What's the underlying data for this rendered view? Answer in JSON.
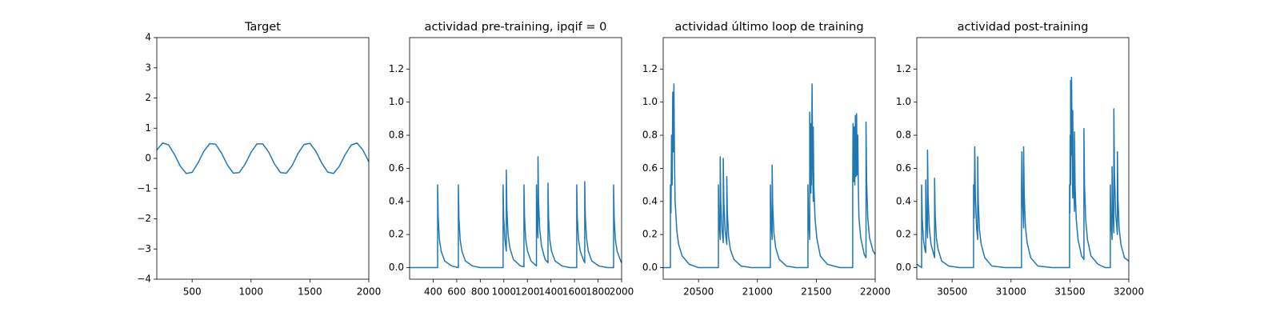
{
  "chart_data": [
    {
      "type": "line",
      "title": "Target",
      "x": [
        200,
        250,
        300,
        350,
        400,
        450,
        500,
        550,
        600,
        650,
        700,
        750,
        800,
        850,
        900,
        950,
        1000,
        1050,
        1100,
        1150,
        1200,
        1250,
        1300,
        1350,
        1400,
        1450,
        1500,
        1550,
        1600,
        1650,
        1700,
        1750,
        1800,
        1850,
        1900,
        1950,
        2000
      ],
      "series": [
        {
          "color": "#1f77b4",
          "values": [
            0.28,
            0.51,
            0.45,
            0.13,
            -0.26,
            -0.5,
            -0.46,
            -0.15,
            0.24,
            0.49,
            0.47,
            0.17,
            -0.22,
            -0.49,
            -0.47,
            -0.19,
            0.2,
            0.48,
            0.48,
            0.21,
            -0.19,
            -0.47,
            -0.49,
            -0.23,
            0.17,
            0.46,
            0.5,
            0.24,
            -0.15,
            -0.45,
            -0.5,
            -0.26,
            0.13,
            0.44,
            0.51,
            0.28,
            -0.11
          ]
        }
      ],
      "xlim": [
        200,
        2000
      ],
      "xticks": [
        500,
        1000,
        1500,
        2000
      ],
      "ylim": [
        -4,
        4
      ],
      "yticks": [
        {
          "value": -4,
          "label": "−4"
        },
        {
          "value": -3,
          "label": "−3"
        },
        {
          "value": -2,
          "label": "−2"
        },
        {
          "value": -1,
          "label": "−1"
        },
        0,
        1,
        2,
        3,
        4
      ]
    },
    {
      "type": "line",
      "title": "actividad pre-training, ipqif = 0",
      "x": [
        200,
        438,
        438,
        443,
        453,
        468,
        498,
        558,
        614,
        614,
        619,
        629,
        644,
        674,
        734,
        800,
        994,
        994,
        999,
        1009,
        1021,
        1021,
        1026,
        1036,
        1051,
        1081,
        1141,
        1171,
        1171,
        1176,
        1186,
        1201,
        1231,
        1277,
        1277,
        1282,
        1290,
        1290,
        1295,
        1305,
        1320,
        1350,
        1375,
        1375,
        1380,
        1390,
        1405,
        1435,
        1495,
        1560,
        1619,
        1619,
        1624,
        1634,
        1649,
        1679,
        1687,
        1687,
        1692,
        1702,
        1717,
        1747,
        1807,
        1880,
        1932,
        1932,
        1937,
        1947,
        1962,
        1992,
        2000
      ],
      "series": [
        {
          "color": "#1f77b4",
          "values": [
            0,
            0,
            0.5,
            0.3,
            0.17,
            0.1,
            0.04,
            0.01,
            0,
            0.5,
            0.3,
            0.17,
            0.1,
            0.04,
            0.01,
            0,
            0,
            0.5,
            0.3,
            0.17,
            0.1,
            0.59,
            0.35,
            0.2,
            0.12,
            0.05,
            0.01,
            0.005,
            0.5,
            0.3,
            0.17,
            0.1,
            0.04,
            0.01,
            0.5,
            0.3,
            0.18,
            0.67,
            0.4,
            0.23,
            0.13,
            0.05,
            0.03,
            0.51,
            0.3,
            0.17,
            0.1,
            0.04,
            0.01,
            0,
            0,
            0.5,
            0.3,
            0.17,
            0.1,
            0.04,
            0.03,
            0.52,
            0.31,
            0.18,
            0.1,
            0.04,
            0.01,
            0,
            0,
            0.5,
            0.3,
            0.17,
            0.1,
            0.04,
            0.03
          ]
        }
      ],
      "xlim": [
        200,
        2000
      ],
      "xticks": [
        400,
        600,
        800,
        1000,
        1200,
        1400,
        1600,
        1800,
        2000
      ],
      "ylim": [
        -0.07,
        1.39
      ],
      "yticks": [
        {
          "value": 0,
          "label": "0.0"
        },
        0.2,
        0.4,
        0.6,
        0.8,
        {
          "value": 1,
          "label": "1.0"
        },
        1.2
      ]
    },
    {
      "type": "line",
      "title": "actividad último loop de training",
      "x": [
        20200,
        20261,
        20261,
        20266,
        20271,
        20276,
        20281,
        20286,
        20291,
        20296,
        20301,
        20316,
        20331,
        20361,
        20421,
        20500,
        20669,
        20669,
        20674,
        20684,
        20684,
        20689,
        20699,
        20710,
        20710,
        20715,
        20725,
        20740,
        20740,
        20745,
        20755,
        20770,
        20800,
        20860,
        20950,
        21110,
        21110,
        21115,
        21125,
        21125,
        21130,
        21140,
        21155,
        21185,
        21245,
        21330,
        21429,
        21429,
        21434,
        21444,
        21444,
        21449,
        21454,
        21454,
        21459,
        21464,
        21469,
        21474,
        21474,
        21479,
        21489,
        21504,
        21534,
        21594,
        21700,
        21809,
        21809,
        21812,
        21817,
        21822,
        21827,
        21832,
        21837,
        21842,
        21847,
        21852,
        21857,
        21862,
        21877,
        21907,
        21922,
        21922,
        21927,
        21937,
        21952,
        21982,
        22000
      ],
      "series": [
        {
          "color": "#1f77b4",
          "values": [
            0,
            0,
            0.5,
            0.33,
            0.8,
            0.5,
            1.06,
            0.7,
            1.11,
            0.65,
            0.4,
            0.22,
            0.14,
            0.07,
            0.02,
            0,
            0,
            0.5,
            0.3,
            0.17,
            0.67,
            0.4,
            0.23,
            0.15,
            0.66,
            0.4,
            0.23,
            0.14,
            0.55,
            0.33,
            0.19,
            0.11,
            0.05,
            0.01,
            0,
            0,
            0.5,
            0.3,
            0.17,
            0.62,
            0.37,
            0.21,
            0.12,
            0.05,
            0.01,
            0,
            0,
            0.5,
            0.3,
            0.17,
            0.94,
            0.56,
            0.45,
            0.87,
            0.5,
            1.11,
            0.65,
            0.4,
            0.85,
            0.5,
            0.3,
            0.18,
            0.07,
            0.02,
            0,
            0,
            0.5,
            0.87,
            0.52,
            0.85,
            0.5,
            0.92,
            0.55,
            0.93,
            0.56,
            0.8,
            0.48,
            0.3,
            0.18,
            0.08,
            0.06,
            0.88,
            0.53,
            0.3,
            0.18,
            0.1,
            0.08
          ]
        }
      ],
      "xlim": [
        20200,
        22000
      ],
      "xticks": [
        20500,
        21000,
        21500,
        22000
      ],
      "ylim": [
        -0.07,
        1.39
      ],
      "yticks": [
        {
          "value": 0,
          "label": "0.0"
        },
        0.2,
        0.4,
        0.6,
        0.8,
        {
          "value": 1,
          "label": "1.0"
        },
        1.2
      ]
    },
    {
      "type": "line",
      "title": "actividad post-training",
      "x": [
        30200,
        30241,
        30241,
        30246,
        30256,
        30271,
        30276,
        30276,
        30281,
        30291,
        30291,
        30296,
        30306,
        30321,
        30351,
        30351,
        30356,
        30366,
        30381,
        30411,
        30471,
        30560,
        30682,
        30682,
        30687,
        30692,
        30697,
        30707,
        30717,
        30717,
        30722,
        30732,
        30747,
        30777,
        30837,
        30950,
        31089,
        31089,
        31092,
        31097,
        31107,
        31107,
        31112,
        31122,
        31137,
        31167,
        31227,
        31350,
        31497,
        31497,
        31500,
        31502,
        31506,
        31506,
        31511,
        31514,
        31519,
        31524,
        31524,
        31529,
        31539,
        31539,
        31544,
        31554,
        31569,
        31599,
        31619,
        31619,
        31624,
        31634,
        31649,
        31679,
        31739,
        31800,
        31843,
        31843,
        31848,
        31858,
        31858,
        31863,
        31873,
        31873,
        31878,
        31888,
        31903,
        31903,
        31908,
        31918,
        31933,
        31963,
        32000
      ],
      "series": [
        {
          "color": "#1f77b4",
          "values": [
            0.02,
            0,
            0.5,
            0.3,
            0.17,
            0.1,
            0.09,
            0.53,
            0.32,
            0.18,
            0.71,
            0.43,
            0.24,
            0.14,
            0.06,
            0.54,
            0.32,
            0.18,
            0.11,
            0.04,
            0.01,
            0,
            0,
            0.5,
            0.3,
            0.73,
            0.44,
            0.25,
            0.17,
            0.67,
            0.4,
            0.23,
            0.14,
            0.06,
            0.01,
            0,
            0,
            0.5,
            0.7,
            0.42,
            0.24,
            0.73,
            0.44,
            0.25,
            0.15,
            0.06,
            0.01,
            0,
            0,
            0.5,
            0.33,
            0.8,
            0.5,
            1.13,
            0.68,
            1.15,
            0.69,
            0.42,
            0.95,
            0.57,
            0.34,
            0.82,
            0.49,
            0.29,
            0.17,
            0.07,
            0.05,
            0.84,
            0.5,
            0.29,
            0.17,
            0.07,
            0.02,
            0,
            0,
            0.5,
            0.3,
            0.17,
            0.61,
            0.37,
            0.21,
            0.96,
            0.58,
            0.33,
            0.2,
            0.7,
            0.42,
            0.24,
            0.14,
            0.06,
            0.04
          ]
        }
      ],
      "xlim": [
        30200,
        32000
      ],
      "xticks": [
        30500,
        31000,
        31500,
        32000
      ],
      "ylim": [
        -0.07,
        1.39
      ],
      "yticks": [
        {
          "value": 0,
          "label": "0.0"
        },
        0.2,
        0.4,
        0.6,
        0.8,
        {
          "value": 1,
          "label": "1.0"
        },
        1.2
      ]
    }
  ]
}
